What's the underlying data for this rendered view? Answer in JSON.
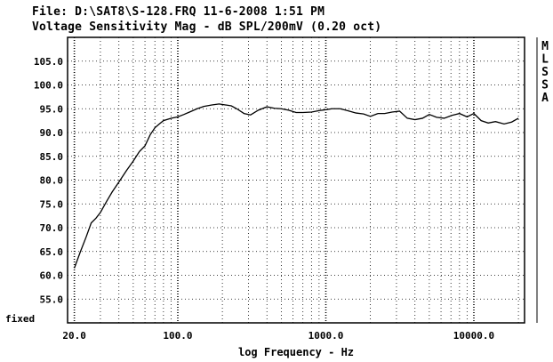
{
  "chart_data": {
    "type": "line",
    "title": "File: D:\\SAT8\\S-128.FRQ 11-6-2008 1:51 PM",
    "subtitle": "Voltage Sensitivity Mag - dB SPL/200mV (0.20 oct)",
    "xlabel": "log Frequency - Hz",
    "ylabel": "",
    "xscale": "log",
    "xlim": [
      18,
      22000
    ],
    "ylim": [
      50,
      110
    ],
    "bottom_label": "fixed",
    "grid": "dotted",
    "x_ticks": [
      {
        "value": 20,
        "label": "20.0"
      },
      {
        "value": 100,
        "label": "100.0"
      },
      {
        "value": 1000,
        "label": "1000.0"
      },
      {
        "value": 10000,
        "label": "10000.0"
      }
    ],
    "y_ticks": [
      {
        "value": 105,
        "label": "105.0"
      },
      {
        "value": 100,
        "label": "100.0"
      },
      {
        "value": 95,
        "label": "95.0"
      },
      {
        "value": 90,
        "label": "90.0"
      },
      {
        "value": 85,
        "label": "85.0"
      },
      {
        "value": 80,
        "label": "80.0"
      },
      {
        "value": 75,
        "label": "75.0"
      },
      {
        "value": 70,
        "label": "70.0"
      },
      {
        "value": 65,
        "label": "65.0"
      },
      {
        "value": 60,
        "label": "60.0"
      },
      {
        "value": 55,
        "label": "55.0"
      }
    ],
    "side_letters": [
      "M",
      "L",
      "S",
      "S",
      "A"
    ],
    "series": [
      {
        "x": [
          20,
          22,
          24,
          26,
          28,
          30,
          33,
          36,
          40,
          45,
          50,
          55,
          60,
          65,
          70,
          75,
          80,
          90,
          100,
          110,
          120,
          135,
          150,
          170,
          190,
          210,
          230,
          250,
          280,
          310,
          350,
          400,
          450,
          500,
          560,
          630,
          700,
          800,
          900,
          1000,
          1100,
          1250,
          1400,
          1600,
          1800,
          2000,
          2250,
          2500,
          2800,
          3150,
          3550,
          4000,
          4500,
          5000,
          5600,
          6300,
          7100,
          8000,
          9000,
          10000,
          11200,
          12500,
          14000,
          16000,
          18000,
          20000
        ],
        "y": [
          61.5,
          65,
          68,
          71,
          72,
          73.2,
          75.5,
          77.5,
          79.6,
          82,
          84,
          86,
          87.2,
          89.5,
          91,
          91.8,
          92.5,
          93,
          93.3,
          93.8,
          94.3,
          95,
          95.5,
          95.8,
          96,
          95.8,
          95.6,
          95,
          94,
          93.7,
          94.7,
          95.4,
          95.1,
          95,
          94.7,
          94.2,
          94.2,
          94.3,
          94.6,
          94.8,
          95,
          95,
          94.6,
          94.1,
          93.9,
          93.4,
          94,
          94,
          94.3,
          94.5,
          93,
          92.7,
          93,
          93.8,
          93.2,
          93,
          93.6,
          94,
          93.3,
          94,
          92.5,
          92,
          92.3,
          91.8,
          92.2,
          93
        ]
      }
    ]
  }
}
